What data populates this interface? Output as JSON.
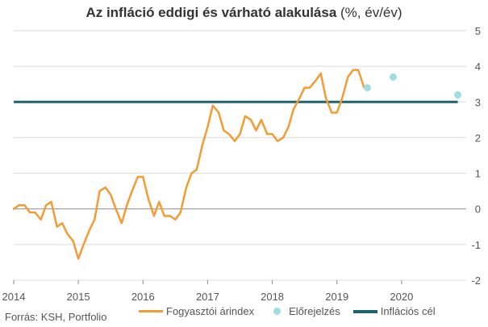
{
  "title_bold": "Az infláció eddigi és várható alakulása",
  "title_unit": " (%, év/év)",
  "source": "Forrás: KSH, Portfolio",
  "colors": {
    "cpi": "#f39c34",
    "forecast": "#9fdde3",
    "target": "#1d6470",
    "grid": "#dcdcdc",
    "zero": "#8a8a8a",
    "text": "#555555"
  },
  "chart_data": {
    "type": "line",
    "title": "Az infláció eddigi és várható alakulása (%, év/év)",
    "xlim": [
      2014.0,
      2021.0
    ],
    "ylim": [
      -2,
      5
    ],
    "x_ticks": [
      "2014",
      "2015",
      "2016",
      "2017",
      "2018",
      "2019",
      "2020"
    ],
    "y_ticks": [
      "-2",
      "-1",
      "0",
      "1",
      "2",
      "3",
      "4",
      "5"
    ],
    "grid": true,
    "legend_position": "bottom",
    "series": [
      {
        "name": "Fogyasztói árindex",
        "kind": "line",
        "x": [
          2014.0,
          2014.08,
          2014.17,
          2014.25,
          2014.33,
          2014.42,
          2014.5,
          2014.58,
          2014.67,
          2014.75,
          2014.83,
          2014.92,
          2015.0,
          2015.08,
          2015.17,
          2015.25,
          2015.33,
          2015.42,
          2015.5,
          2015.58,
          2015.67,
          2015.75,
          2015.83,
          2015.92,
          2016.0,
          2016.08,
          2016.17,
          2016.25,
          2016.33,
          2016.42,
          2016.5,
          2016.58,
          2016.67,
          2016.75,
          2016.83,
          2016.92,
          2017.0,
          2017.08,
          2017.17,
          2017.25,
          2017.33,
          2017.42,
          2017.5,
          2017.58,
          2017.67,
          2017.75,
          2017.83,
          2017.92,
          2018.0,
          2018.08,
          2018.17,
          2018.25,
          2018.33,
          2018.42,
          2018.5,
          2018.58,
          2018.67,
          2018.75,
          2018.83,
          2018.92,
          2019.0,
          2019.08,
          2019.17,
          2019.25,
          2019.33,
          2019.42,
          2019.5
        ],
        "values": [
          0.0,
          0.1,
          0.1,
          -0.1,
          -0.1,
          -0.3,
          0.1,
          0.2,
          -0.5,
          -0.4,
          -0.7,
          -0.9,
          -1.4,
          -1.0,
          -0.6,
          -0.3,
          0.5,
          0.6,
          0.4,
          0.0,
          -0.4,
          0.1,
          0.5,
          0.9,
          0.9,
          0.3,
          -0.2,
          0.2,
          -0.2,
          -0.2,
          -0.3,
          -0.1,
          0.6,
          1.0,
          1.1,
          1.8,
          2.3,
          2.9,
          2.7,
          2.2,
          2.1,
          1.9,
          2.1,
          2.6,
          2.5,
          2.2,
          2.5,
          2.1,
          2.1,
          1.9,
          2.0,
          2.3,
          2.8,
          3.1,
          3.4,
          3.4,
          3.6,
          3.8,
          3.1,
          2.7,
          2.7,
          3.1,
          3.7,
          3.9,
          3.9,
          3.4,
          3.4
        ]
      },
      {
        "name": "Előrejelzés",
        "kind": "scatter",
        "x": [
          2019.47,
          2019.87,
          2020.87
        ],
        "values": [
          3.4,
          3.7,
          3.2
        ]
      },
      {
        "name": "Inflációs cél",
        "kind": "line",
        "x": [
          2014.0,
          2020.87
        ],
        "values": [
          3.0,
          3.0
        ]
      }
    ]
  }
}
